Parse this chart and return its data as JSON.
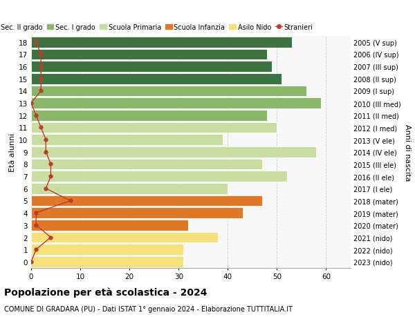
{
  "ages": [
    0,
    1,
    2,
    3,
    4,
    5,
    6,
    7,
    8,
    9,
    10,
    11,
    12,
    13,
    14,
    15,
    16,
    17,
    18
  ],
  "bar_values": [
    31,
    31,
    38,
    32,
    43,
    47,
    40,
    52,
    47,
    58,
    39,
    50,
    48,
    59,
    56,
    51,
    49,
    48,
    53
  ],
  "bar_colors": [
    "#f5e07a",
    "#f5e07a",
    "#f5e07a",
    "#e07828",
    "#e07828",
    "#e07828",
    "#c8dda0",
    "#c8dda0",
    "#c8dda0",
    "#c8dda0",
    "#c8dda0",
    "#c8dda0",
    "#8ab868",
    "#8ab868",
    "#8ab868",
    "#3d7340",
    "#3d7340",
    "#3d7340",
    "#3d7340"
  ],
  "stranieri_values": [
    0,
    1,
    4,
    1,
    1,
    8,
    3,
    4,
    4,
    3,
    3,
    2,
    1,
    0,
    2,
    2,
    2,
    2,
    1
  ],
  "right_labels": [
    "2023 (nido)",
    "2022 (nido)",
    "2021 (nido)",
    "2020 (mater)",
    "2019 (mater)",
    "2018 (mater)",
    "2017 (I ele)",
    "2016 (II ele)",
    "2015 (III ele)",
    "2014 (IV ele)",
    "2013 (V ele)",
    "2012 (I med)",
    "2011 (II med)",
    "2010 (III med)",
    "2009 (I sup)",
    "2008 (II sup)",
    "2007 (III sup)",
    "2006 (IV sup)",
    "2005 (V sup)"
  ],
  "legend_labels": [
    "Sec. II grado",
    "Sec. I grado",
    "Scuola Primaria",
    "Scuola Infanzia",
    "Asilo Nido",
    "Stranieri"
  ],
  "legend_colors": [
    "#3d7340",
    "#8ab868",
    "#c8dda0",
    "#e07828",
    "#f5e07a",
    "#c0392b"
  ],
  "ylabel": "Età alunni",
  "right_ylabel": "Anni di nascita",
  "title": "Popolazione per età scolastica - 2024",
  "subtitle": "COMUNE DI GRADARA (PU) - Dati ISTAT 1° gennaio 2024 - Elaborazione TUTTITALIA.IT",
  "xlim": [
    0,
    65
  ],
  "xticks": [
    0,
    10,
    20,
    30,
    40,
    50,
    60
  ],
  "bg_color": "#f7f7f7",
  "stranieri_color": "#c0392b"
}
